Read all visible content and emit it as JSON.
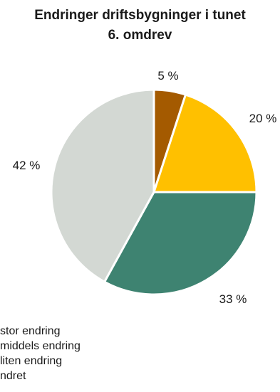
{
  "chart_data": {
    "type": "pie",
    "title": [
      "Endringer driftsbygninger i tunet",
      "6. omdrev"
    ],
    "start_angle_deg": 0,
    "direction": "clockwise",
    "slices": [
      {
        "label": "stor endring",
        "value": 5,
        "display": "5 %",
        "color": "#A45A00"
      },
      {
        "label": "middels endring",
        "value": 20,
        "display": "20 %",
        "color": "#FFC000"
      },
      {
        "label": "liten endring",
        "value": 33,
        "display": "33 %",
        "color": "#3E8371"
      },
      {
        "label": "endret",
        "value": 42,
        "display": "42 %",
        "color": "#D3D8D3"
      }
    ],
    "legend": {
      "placement": "bottom-left",
      "entries": [
        "stor endring",
        "middels endring",
        "liten endring",
        "ndret"
      ]
    }
  }
}
